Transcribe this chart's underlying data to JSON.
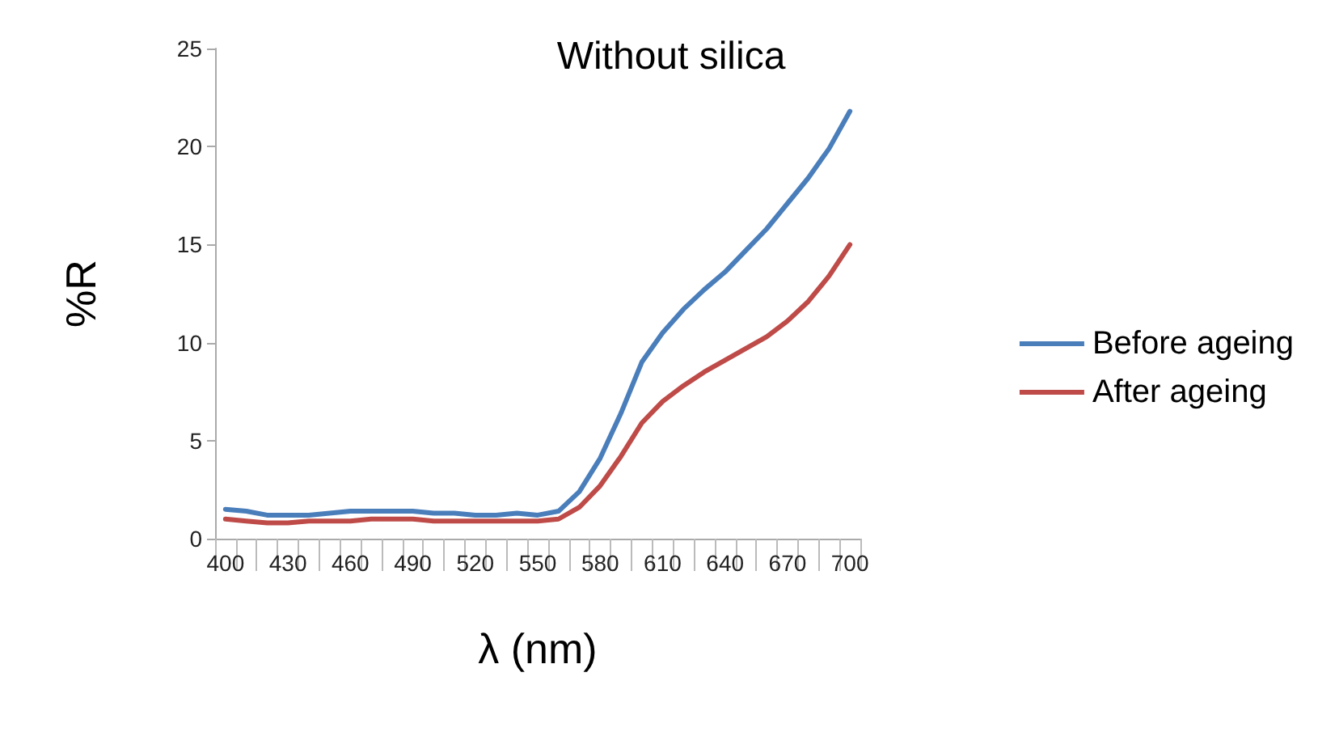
{
  "chart_data": {
    "type": "line",
    "title": "Without silica",
    "xlabel": "λ (nm)",
    "ylabel": "%R",
    "categories": [
      "400",
      null,
      null,
      "430",
      null,
      null,
      "460",
      null,
      null,
      "490",
      null,
      null,
      "520",
      null,
      null,
      "550",
      null,
      null,
      "580",
      null,
      null,
      "610",
      null,
      null,
      "640",
      null,
      null,
      "670",
      null,
      null,
      "700"
    ],
    "series": [
      {
        "name": "Before ageing",
        "color": "#4a7ebb",
        "values": [
          1.5,
          1.4,
          1.2,
          1.2,
          1.2,
          1.3,
          1.4,
          1.4,
          1.4,
          1.4,
          1.3,
          1.3,
          1.2,
          1.2,
          1.3,
          1.2,
          1.4,
          2.4,
          4.1,
          6.4,
          9.0,
          10.5,
          11.7,
          12.7,
          13.6,
          14.7,
          15.8,
          17.1,
          18.4,
          19.9,
          21.8
        ]
      },
      {
        "name": "After ageing",
        "color": "#be4b48",
        "values": [
          1.0,
          0.9,
          0.8,
          0.8,
          0.9,
          0.9,
          0.9,
          1.0,
          1.0,
          1.0,
          0.9,
          0.9,
          0.9,
          0.9,
          0.9,
          0.9,
          1.0,
          1.6,
          2.7,
          4.2,
          5.9,
          7.0,
          7.8,
          8.5,
          9.1,
          9.7,
          10.3,
          11.1,
          12.1,
          13.4,
          15.0
        ]
      }
    ],
    "ylim": [
      0,
      25
    ],
    "yticks": [
      0,
      5,
      10,
      15,
      20,
      25
    ],
    "grid": false,
    "legend": "right",
    "marker": "none",
    "line_style": "solid"
  }
}
